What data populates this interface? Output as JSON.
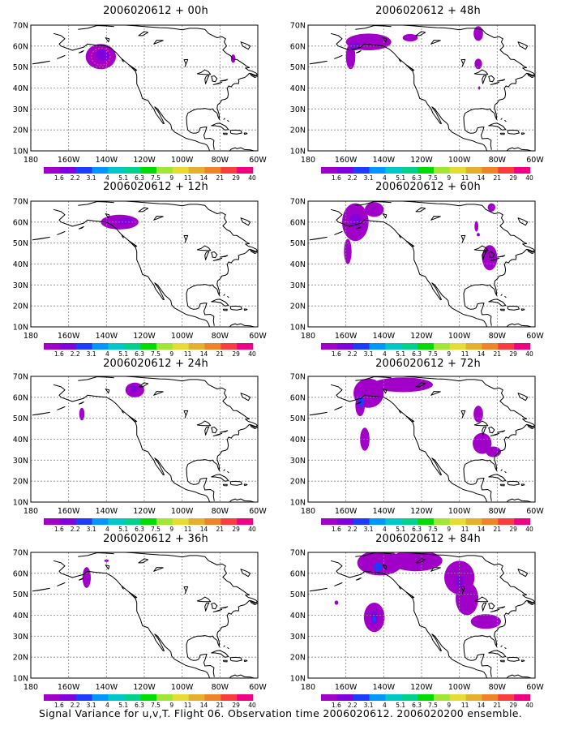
{
  "caption": "Signal Variance for u,v,T. Flight 06. Observation time 2006020612. 2006020200 ensemble.",
  "map_axes": {
    "lat_labels": [
      "70N",
      "60N",
      "50N",
      "40N",
      "30N",
      "20N",
      "10N"
    ],
    "lat_values": [
      70,
      60,
      50,
      40,
      30,
      20,
      10
    ],
    "lon_labels": [
      "180",
      "160W",
      "140W",
      "120W",
      "100W",
      "80W",
      "60W"
    ],
    "lon_values": [
      180,
      160,
      140,
      120,
      100,
      80,
      60
    ]
  },
  "colorbar": {
    "labels": [
      "1.6",
      "2.2",
      "3.1",
      "4",
      "5.1",
      "6.3",
      "7.5",
      "9",
      "11",
      "14",
      "21",
      "29",
      "40"
    ],
    "colors": [
      "#a000c8",
      "#8200dc",
      "#1e3cff",
      "#0096ff",
      "#00c8c8",
      "#00d28c",
      "#00dc00",
      "#a0e632",
      "#e6dc32",
      "#e6af2d",
      "#f08228",
      "#fa3c3c",
      "#f00082"
    ]
  },
  "panels": [
    {
      "title": "2006020612 + 00h",
      "col": 0,
      "row": 0,
      "blobs": [
        {
          "lon": 143,
          "lat": 55,
          "rx": 8,
          "ry": 6,
          "level": 0
        },
        {
          "lon": 142,
          "lat": 56,
          "rx": 3.5,
          "ry": 3,
          "level": 1
        },
        {
          "lon": 73,
          "lat": 54,
          "rx": 1.2,
          "ry": 2,
          "level": 0
        }
      ],
      "rings": [
        {
          "lon": 143,
          "lat": 55,
          "rx": 5,
          "ry": 4,
          "color": "#ff2080"
        }
      ]
    },
    {
      "title": "2006020612 + 12h",
      "col": 0,
      "row": 1,
      "blobs": [
        {
          "lon": 133,
          "lat": 60,
          "rx": 10,
          "ry": 3.5,
          "level": 0
        },
        {
          "lon": 130,
          "lat": 60.5,
          "rx": 4,
          "ry": 1.5,
          "level": 1
        }
      ],
      "rings": []
    },
    {
      "title": "2006020612 + 24h",
      "col": 0,
      "row": 2,
      "blobs": [
        {
          "lon": 125,
          "lat": 63.5,
          "rx": 5,
          "ry": 3.5,
          "level": 0
        },
        {
          "lon": 125.5,
          "lat": 64,
          "rx": 2,
          "ry": 1.5,
          "level": 1
        },
        {
          "lon": 153,
          "lat": 52,
          "rx": 1.4,
          "ry": 3,
          "level": 0
        }
      ],
      "rings": []
    },
    {
      "title": "2006020612 + 36h",
      "col": 0,
      "row": 3,
      "blobs": [
        {
          "lon": 150.5,
          "lat": 58,
          "rx": 2.2,
          "ry": 5,
          "level": 0
        },
        {
          "lon": 140,
          "lat": 66,
          "rx": 1.2,
          "ry": 0.6,
          "level": 0
        }
      ],
      "rings": []
    },
    {
      "title": "2006020612 + 48h",
      "col": 1,
      "row": 0,
      "blobs": [
        {
          "lon": 148,
          "lat": 62,
          "rx": 12,
          "ry": 4,
          "level": 0
        },
        {
          "lon": 157.5,
          "lat": 55,
          "rx": 2.5,
          "ry": 6,
          "level": 0
        },
        {
          "lon": 155,
          "lat": 60,
          "rx": 3,
          "ry": 2,
          "level": 1
        },
        {
          "lon": 126,
          "lat": 64,
          "rx": 4,
          "ry": 1.8,
          "level": 0
        },
        {
          "lon": 90,
          "lat": 66,
          "rx": 2.5,
          "ry": 3.5,
          "level": 0
        },
        {
          "lon": 90,
          "lat": 51.5,
          "rx": 2,
          "ry": 2.5,
          "level": 0
        },
        {
          "lon": 89.5,
          "lat": 40,
          "rx": 0.5,
          "ry": 0.8,
          "level": 0
        }
      ],
      "rings": []
    },
    {
      "title": "2006020612 + 60h",
      "col": 1,
      "row": 1,
      "blobs": [
        {
          "lon": 155,
          "lat": 60,
          "rx": 7,
          "ry": 9,
          "level": 0
        },
        {
          "lon": 159,
          "lat": 46,
          "rx": 2,
          "ry": 6,
          "level": 0
        },
        {
          "lon": 145,
          "lat": 66,
          "rx": 5,
          "ry": 3.5,
          "level": 0
        },
        {
          "lon": 155,
          "lat": 61,
          "rx": 3,
          "ry": 3,
          "level": 1
        },
        {
          "lon": 83,
          "lat": 67,
          "rx": 2,
          "ry": 2,
          "level": 0
        },
        {
          "lon": 91,
          "lat": 58,
          "rx": 1,
          "ry": 2.5,
          "level": 0
        },
        {
          "lon": 84,
          "lat": 43,
          "rx": 4,
          "ry": 6,
          "level": 0
        },
        {
          "lon": 90,
          "lat": 54,
          "rx": 0.8,
          "ry": 0.8,
          "level": 1
        }
      ],
      "rings": []
    },
    {
      "title": "2006020612 + 72h",
      "col": 1,
      "row": 2,
      "blobs": [
        {
          "lon": 148,
          "lat": 62,
          "rx": 8,
          "ry": 7,
          "level": 0
        },
        {
          "lon": 152.5,
          "lat": 56,
          "rx": 2.5,
          "ry": 5,
          "level": 0
        },
        {
          "lon": 130,
          "lat": 66,
          "rx": 16,
          "ry": 3.5,
          "level": 0
        },
        {
          "lon": 152,
          "lat": 58,
          "rx": 1.5,
          "ry": 2.5,
          "level": 2
        },
        {
          "lon": 150,
          "lat": 40,
          "rx": 2.5,
          "ry": 5.5,
          "level": 0
        },
        {
          "lon": 90,
          "lat": 52,
          "rx": 2.5,
          "ry": 4,
          "level": 0
        },
        {
          "lon": 88,
          "lat": 38,
          "rx": 5,
          "ry": 5,
          "level": 0
        },
        {
          "lon": 82,
          "lat": 34,
          "rx": 4,
          "ry": 2.5,
          "level": 0
        }
      ],
      "rings": []
    },
    {
      "title": "2006020612 + 84h",
      "col": 1,
      "row": 3,
      "blobs": [
        {
          "lon": 142,
          "lat": 65,
          "rx": 12,
          "ry": 6,
          "level": 0
        },
        {
          "lon": 123,
          "lat": 66,
          "rx": 14,
          "ry": 5,
          "level": 0
        },
        {
          "lon": 100,
          "lat": 58,
          "rx": 8,
          "ry": 8,
          "level": 0
        },
        {
          "lon": 96,
          "lat": 48,
          "rx": 6,
          "ry": 8,
          "level": 0
        },
        {
          "lon": 86,
          "lat": 37,
          "rx": 8,
          "ry": 3.5,
          "level": 0
        },
        {
          "lon": 145,
          "lat": 39,
          "rx": 5.5,
          "ry": 7,
          "level": 0
        },
        {
          "lon": 165,
          "lat": 46,
          "rx": 1,
          "ry": 1,
          "level": 0
        },
        {
          "lon": 143,
          "lat": 63,
          "rx": 2.2,
          "ry": 2.2,
          "level": 2
        },
        {
          "lon": 145,
          "lat": 39,
          "rx": 2,
          "ry": 3,
          "level": 1
        },
        {
          "lon": 145,
          "lat": 38,
          "rx": 1,
          "ry": 1.5,
          "level": 2
        },
        {
          "lon": 100,
          "lat": 56,
          "rx": 2,
          "ry": 3,
          "level": 1
        }
      ],
      "rings": []
    }
  ]
}
